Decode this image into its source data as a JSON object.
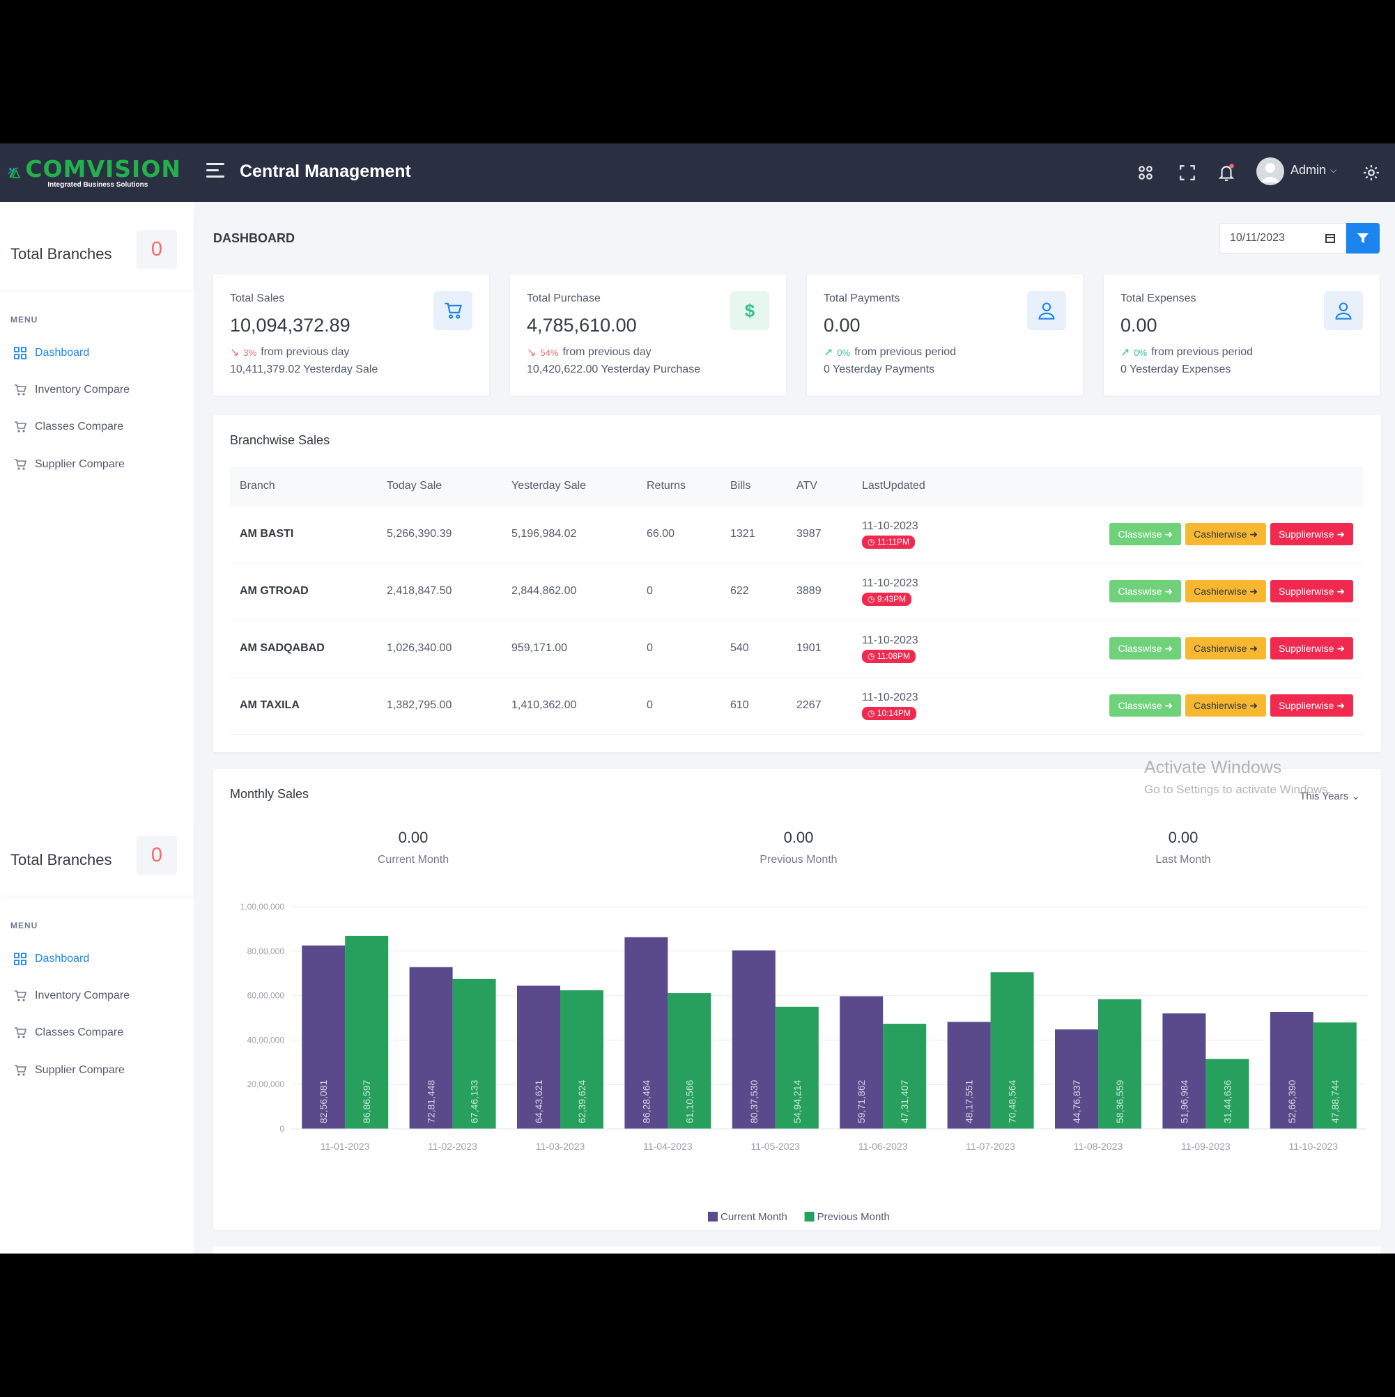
{
  "topbar": {
    "brand": "COMVISION",
    "tagline": "Integrated Business Solutions",
    "title": "Central Management",
    "user": "Admin",
    "icons": [
      "apps-icon",
      "fullscreen-icon",
      "bell-icon",
      "gear-icon"
    ]
  },
  "sidebar": {
    "total_branches_label": "Total Branches",
    "total_branches_count": "0",
    "menu_title": "MENU",
    "items": [
      {
        "label": "Dashboard",
        "icon": "dashboard-icon"
      },
      {
        "label": "Inventory Compare",
        "icon": "cart-icon"
      },
      {
        "label": "Classes Compare",
        "icon": "cart-icon"
      },
      {
        "label": "Supplier Compare",
        "icon": "cart-icon"
      }
    ]
  },
  "page": {
    "title": "DASHBOARD",
    "date": "10/11/2023"
  },
  "stats": [
    {
      "title": "Total Sales",
      "value": "10,094,372.89",
      "pct": "3%",
      "dir": "down",
      "change_text": "from previous day",
      "yesterday": "10,411,379.02 Yesterday Sale",
      "icon": "cart-icon"
    },
    {
      "title": "Total Purchase",
      "value": "4,785,610.00",
      "pct": "54%",
      "dir": "down",
      "change_text": "from previous day",
      "yesterday": "10,420,622.00 Yesterday Purchase",
      "icon": "dollar-icon"
    },
    {
      "title": "Total Payments",
      "value": "0.00",
      "pct": "0%",
      "dir": "up",
      "change_text": "from previous period",
      "yesterday": "0 Yesterday Payments",
      "icon": "user-icon"
    },
    {
      "title": "Total Expenses",
      "value": "0.00",
      "pct": "0%",
      "dir": "up",
      "change_text": "from previous period",
      "yesterday": "0 Yesterday Expenses",
      "icon": "user-icon"
    }
  ],
  "branchwise": {
    "title": "Branchwise Sales",
    "columns": [
      "Branch",
      "Today Sale",
      "Yesterday Sale",
      "Returns",
      "Bills",
      "ATV",
      "LastUpdated"
    ],
    "rows": [
      {
        "branch": "AM BASTI",
        "today": "5,266,390.39",
        "yesterday": "5,196,984.02",
        "returns": "66.00",
        "bills": "1321",
        "atv": "3987",
        "date": "11-10-2023",
        "time": "11:11PM"
      },
      {
        "branch": "AM GTROAD",
        "today": "2,418,847.50",
        "yesterday": "2,844,862.00",
        "returns": "0",
        "bills": "622",
        "atv": "3889",
        "date": "11-10-2023",
        "time": "9:43PM"
      },
      {
        "branch": "AM SADQABAD",
        "today": "1,026,340.00",
        "yesterday": "959,171.00",
        "returns": "0",
        "bills": "540",
        "atv": "1901",
        "date": "11-10-2023",
        "time": "11:08PM"
      },
      {
        "branch": "AM TAXILA",
        "today": "1,382,795.00",
        "yesterday": "1,410,362.00",
        "returns": "0",
        "bills": "610",
        "atv": "2267",
        "date": "11-10-2023",
        "time": "10:14PM"
      }
    ],
    "buttons": [
      "Classwise",
      "Cashierwise",
      "Supplierwise"
    ]
  },
  "monthly": {
    "title": "Monthly Sales",
    "period": "This Years",
    "kpis": [
      {
        "value": "0.00",
        "label": "Current Month"
      },
      {
        "value": "0.00",
        "label": "Previous Month"
      },
      {
        "value": "0.00",
        "label": "Last Month"
      }
    ]
  },
  "watermark": {
    "line1": "Activate Windows",
    "line2": "Go to Settings to activate Windows."
  },
  "colors": {
    "current": "#5b4a8b",
    "previous": "#27a05e",
    "accent": "#1c84ee"
  },
  "chart_data": {
    "type": "bar",
    "categories": [
      "11-01-2023",
      "11-02-2023",
      "11-03-2023",
      "11-04-2023",
      "11-05-2023",
      "11-06-2023",
      "11-07-2023",
      "11-08-2023",
      "11-09-2023",
      "11-10-2023"
    ],
    "series": [
      {
        "name": "Current Month",
        "values": [
          8256081,
          7281448,
          6443621,
          8628464,
          8037530,
          5971862,
          4817551,
          4476837,
          5196984,
          5266390
        ],
        "labels": [
          "82,56,081",
          "72,81,448",
          "64,43,621",
          "86,28,464",
          "80,37,530",
          "59,71,862",
          "48,17,551",
          "44,76,837",
          "51,96,984",
          "52,66,390"
        ]
      },
      {
        "name": "Previous Month",
        "values": [
          8686597,
          6746133,
          6239624,
          6110566,
          5494214,
          4731407,
          7048564,
          5836559,
          3144636,
          4788744
        ],
        "labels": [
          "86,86,597",
          "67,46,133",
          "62,39,624",
          "61,10,566",
          "54,94,214",
          "47,31,407",
          "70,48,564",
          "58,36,559",
          "31,44,636",
          "47,88,744"
        ]
      }
    ],
    "ylim": [
      0,
      10000000
    ],
    "yticks": [
      0,
      2000000,
      4000000,
      6000000,
      8000000,
      10000000
    ],
    "ytick_labels": [
      "0",
      "20,00,000",
      "40,00,000",
      "60,00,000",
      "80,00,000",
      "1,00,00,000"
    ],
    "legend": "bottom",
    "grid": true
  }
}
